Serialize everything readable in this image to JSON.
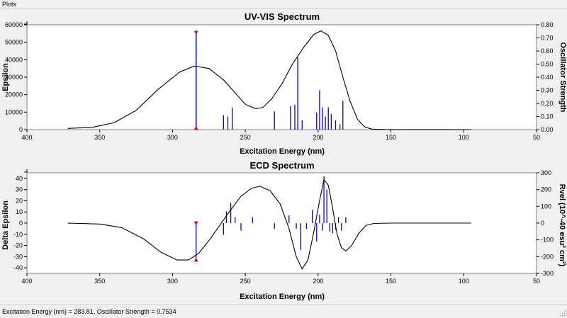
{
  "window": {
    "title": "Plots"
  },
  "status": {
    "text": "Excitation Energy (nm) = 283.81, Oscillator Strength = 0.7534"
  },
  "chart_data": [
    {
      "type": "line",
      "title": "UV-VIS Spectrum",
      "xlabel": "Excitation Energy (nm)",
      "ylabel": "Epsilon",
      "y2label": "Oscillator Strength",
      "xlim": [
        400,
        50
      ],
      "ylim": [
        0,
        60000
      ],
      "y2lim": [
        0,
        0.8
      ],
      "xticks": [
        "400",
        "350",
        "300",
        "250",
        "200",
        "150",
        "100",
        "50"
      ],
      "yticks": [
        "0",
        "10000",
        "20000",
        "30000",
        "40000",
        "50000",
        "60000"
      ],
      "y2ticks": [
        "0.00",
        "0.10",
        "0.20",
        "0.30",
        "0.40",
        "0.50",
        "0.60",
        "0.70",
        "0.80"
      ],
      "curve": [
        [
          372,
          700
        ],
        [
          355,
          1300
        ],
        [
          340,
          4000
        ],
        [
          325,
          11000
        ],
        [
          310,
          23000
        ],
        [
          295,
          33000
        ],
        [
          285,
          36400
        ],
        [
          275,
          35000
        ],
        [
          265,
          28500
        ],
        [
          257,
          21000
        ],
        [
          250,
          14500
        ],
        [
          243,
          12000
        ],
        [
          238,
          12600
        ],
        [
          232,
          17500
        ],
        [
          225,
          26000
        ],
        [
          218,
          37000
        ],
        [
          210,
          47000
        ],
        [
          203,
          54500
        ],
        [
          198,
          56500
        ],
        [
          193,
          54000
        ],
        [
          188,
          45000
        ],
        [
          183,
          30000
        ],
        [
          178,
          16000
        ],
        [
          173,
          6000
        ],
        [
          168,
          1500
        ],
        [
          163,
          300
        ],
        [
          155,
          80
        ],
        [
          140,
          40
        ],
        [
          120,
          30
        ],
        [
          95,
          20
        ]
      ],
      "sticks": [
        [
          283.81,
          0.7534
        ],
        [
          265,
          0.11
        ],
        [
          262,
          0.1
        ],
        [
          259,
          0.17
        ],
        [
          230,
          0.14
        ],
        [
          219,
          0.18
        ],
        [
          216,
          0.19
        ],
        [
          214,
          0.55
        ],
        [
          211,
          0.07
        ],
        [
          201,
          0.13
        ],
        [
          199,
          0.3
        ],
        [
          197,
          0.17
        ],
        [
          195,
          0.1
        ],
        [
          193,
          0.17
        ],
        [
          191,
          0.12
        ],
        [
          188,
          0.07
        ],
        [
          185,
          0.04
        ],
        [
          183,
          0.22
        ]
      ],
      "selected": {
        "x": 283.81,
        "y": 0.7534
      }
    },
    {
      "type": "line",
      "title": "ECD Spectrum",
      "xlabel": "Excitation Energy (nm)",
      "ylabel": "Delta Epsilon",
      "y2label": "Rvel (10^-40 esu² cm²)",
      "xlim": [
        400,
        50
      ],
      "ylim": [
        -45,
        45
      ],
      "y2lim": [
        -300,
        300
      ],
      "xticks": [
        "400",
        "350",
        "300",
        "250",
        "200",
        "150",
        "100",
        "50"
      ],
      "yticks": [
        "-40",
        "-30",
        "-20",
        "-10",
        "0",
        "10",
        "20",
        "30",
        "40"
      ],
      "y2ticks": [
        "-300",
        "-200",
        "-100",
        "0",
        "100",
        "200",
        "300"
      ],
      "curve": [
        [
          372,
          0
        ],
        [
          350,
          -0.8
        ],
        [
          335,
          -4
        ],
        [
          320,
          -14
        ],
        [
          308,
          -26
        ],
        [
          297,
          -33
        ],
        [
          289,
          -33
        ],
        [
          282,
          -27
        ],
        [
          274,
          -14
        ],
        [
          267,
          -1
        ],
        [
          260,
          12
        ],
        [
          253,
          24
        ],
        [
          246,
          31
        ],
        [
          240,
          33
        ],
        [
          233,
          29
        ],
        [
          226,
          17
        ],
        [
          220,
          -5
        ],
        [
          215,
          -30
        ],
        [
          211,
          -41
        ],
        [
          207,
          -33
        ],
        [
          203,
          -8
        ],
        [
          199,
          20
        ],
        [
          196,
          39
        ],
        [
          193,
          34
        ],
        [
          190,
          13
        ],
        [
          187,
          -10
        ],
        [
          184,
          -22
        ],
        [
          181,
          -25
        ],
        [
          177,
          -20
        ],
        [
          172,
          -9
        ],
        [
          167,
          -2
        ],
        [
          162,
          -0.3
        ],
        [
          150,
          0
        ],
        [
          120,
          0
        ],
        [
          95,
          0
        ]
      ],
      "sticks": [
        [
          283.81,
          -229
        ],
        [
          283.81,
          10
        ],
        [
          265,
          -70
        ],
        [
          263,
          70
        ],
        [
          260,
          120
        ],
        [
          257,
          35
        ],
        [
          253,
          -45
        ],
        [
          245,
          35
        ],
        [
          230,
          -35
        ],
        [
          220,
          45
        ],
        [
          215,
          -35
        ],
        [
          212,
          -160
        ],
        [
          208,
          -35
        ],
        [
          204,
          80
        ],
        [
          201,
          -110
        ],
        [
          199,
          50
        ],
        [
          197,
          -45
        ],
        [
          196,
          280
        ],
        [
          194,
          200
        ],
        [
          192,
          -50
        ],
        [
          190,
          -60
        ],
        [
          188,
          -40
        ],
        [
          186,
          35
        ],
        [
          184,
          -45
        ],
        [
          181,
          35
        ]
      ],
      "selected": {
        "x": 283.81
      }
    }
  ]
}
